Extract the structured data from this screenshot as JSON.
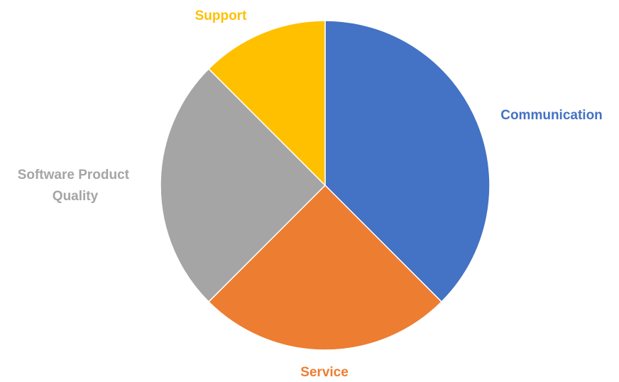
{
  "chart_data": {
    "type": "pie",
    "start_angle_deg": 0,
    "direction": "clockwise",
    "legend": "none",
    "slices": [
      {
        "label": "Communication",
        "value": 37.5,
        "color": "#4472C4"
      },
      {
        "label": "Service",
        "value": 25,
        "color": "#ED7D31"
      },
      {
        "label": "Software Product Quality",
        "value": 25,
        "color": "#A5A5A5"
      },
      {
        "label": "Support",
        "value": 12.5,
        "color": "#FFC000"
      }
    ]
  }
}
